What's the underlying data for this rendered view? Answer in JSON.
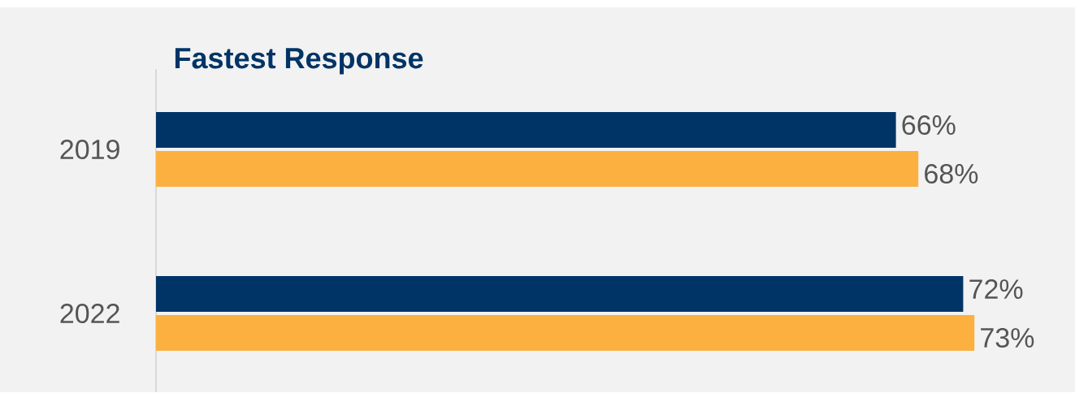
{
  "chart_data": {
    "type": "bar",
    "orientation": "horizontal",
    "title": "Fastest Response",
    "categories": [
      "2019",
      "2022"
    ],
    "series": [
      {
        "color": "#003466",
        "values": [
          66,
          72
        ],
        "value_labels": [
          "66%",
          "72%"
        ]
      },
      {
        "color": "#fbb040",
        "values": [
          68,
          73
        ],
        "value_labels": [
          "68%",
          "73%"
        ]
      }
    ]
  }
}
